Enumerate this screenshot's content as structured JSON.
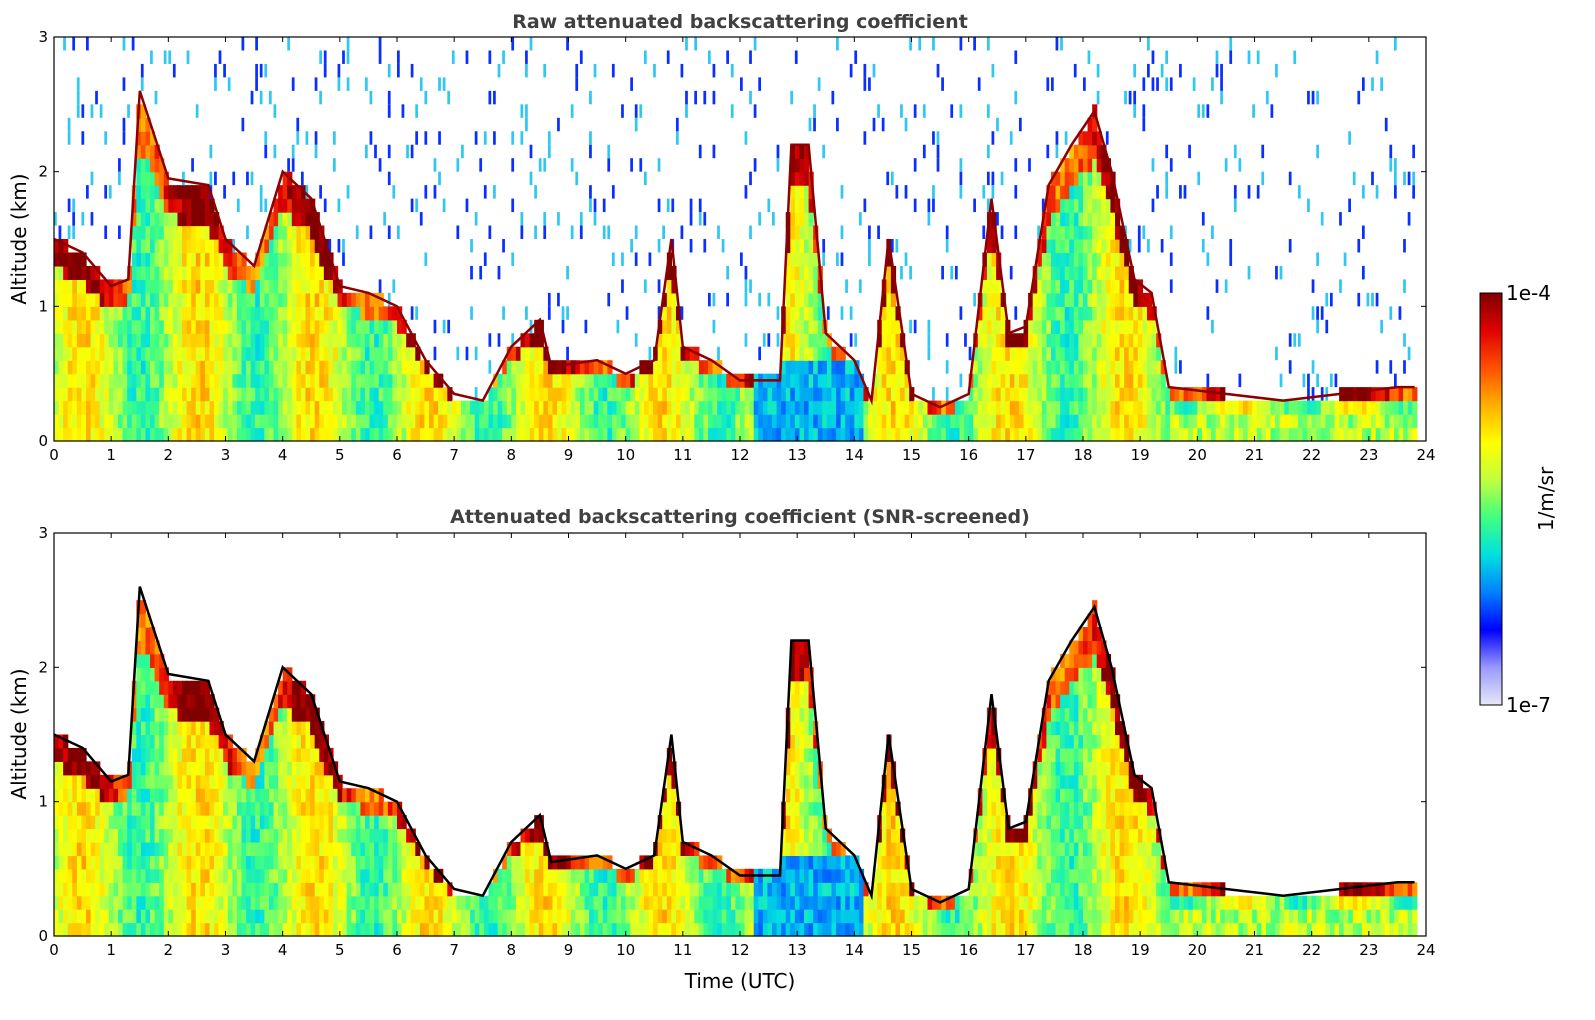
{
  "chart_data": [
    {
      "type": "heatmap",
      "title": "Raw attenuated backscattering coefficient",
      "xlabel": "",
      "ylabel": "Altitude (km)",
      "xlim": [
        0,
        24
      ],
      "ylim": [
        0,
        3
      ],
      "xticks": [
        "0",
        "1",
        "2",
        "3",
        "4",
        "5",
        "6",
        "7",
        "8",
        "9",
        "10",
        "11",
        "12",
        "13",
        "14",
        "15",
        "16",
        "17",
        "18",
        "19",
        "20",
        "21",
        "22",
        "23",
        "24"
      ],
      "yticks": [
        "0",
        "1",
        "2",
        "3"
      ],
      "noise_above_layer": true,
      "boundary_layer_top_km": [
        [
          0.0,
          1.5
        ],
        [
          0.5,
          1.4
        ],
        [
          1.0,
          1.15
        ],
        [
          1.3,
          1.2
        ],
        [
          1.5,
          2.6
        ],
        [
          2.0,
          1.95
        ],
        [
          2.7,
          1.9
        ],
        [
          3.0,
          1.5
        ],
        [
          3.5,
          1.3
        ],
        [
          4.0,
          2.0
        ],
        [
          4.5,
          1.8
        ],
        [
          5.0,
          1.15
        ],
        [
          5.5,
          1.1
        ],
        [
          6.0,
          1.0
        ],
        [
          6.5,
          0.6
        ],
        [
          7.0,
          0.35
        ],
        [
          7.5,
          0.3
        ],
        [
          8.0,
          0.7
        ],
        [
          8.5,
          0.9
        ],
        [
          8.7,
          0.55
        ],
        [
          9.5,
          0.6
        ],
        [
          10.0,
          0.5
        ],
        [
          10.5,
          0.6
        ],
        [
          10.8,
          1.5
        ],
        [
          11.0,
          0.7
        ],
        [
          11.5,
          0.6
        ],
        [
          12.0,
          0.45
        ],
        [
          12.7,
          0.45
        ],
        [
          12.9,
          2.2
        ],
        [
          13.2,
          2.2
        ],
        [
          13.5,
          0.8
        ],
        [
          14.0,
          0.6
        ],
        [
          14.3,
          0.3
        ],
        [
          14.6,
          1.5
        ],
        [
          15.0,
          0.35
        ],
        [
          15.5,
          0.25
        ],
        [
          16.0,
          0.35
        ],
        [
          16.4,
          1.8
        ],
        [
          16.7,
          0.8
        ],
        [
          17.0,
          0.85
        ],
        [
          17.4,
          1.9
        ],
        [
          17.8,
          2.2
        ],
        [
          18.2,
          2.45
        ],
        [
          18.5,
          2.0
        ],
        [
          18.9,
          1.2
        ],
        [
          19.2,
          1.1
        ],
        [
          19.5,
          0.4
        ],
        [
          20.5,
          0.35
        ],
        [
          21.5,
          0.3
        ],
        [
          22.5,
          0.35
        ],
        [
          23.5,
          0.4
        ],
        [
          23.8,
          0.4
        ]
      ]
    },
    {
      "type": "heatmap",
      "title": "Attenuated backscattering coefficient (SNR-screened)",
      "xlabel": "Time (UTC)",
      "ylabel": "Altitude (km)",
      "xlim": [
        0,
        24
      ],
      "ylim": [
        0,
        3
      ],
      "xticks": [
        "0",
        "1",
        "2",
        "3",
        "4",
        "5",
        "6",
        "7",
        "8",
        "9",
        "10",
        "11",
        "12",
        "13",
        "14",
        "15",
        "16",
        "17",
        "18",
        "19",
        "20",
        "21",
        "22",
        "23",
        "24"
      ],
      "yticks": [
        "0",
        "1",
        "2",
        "3"
      ],
      "noise_above_layer": false,
      "boundary_layer_top_km": [
        [
          0.0,
          1.5
        ],
        [
          0.5,
          1.4
        ],
        [
          1.0,
          1.15
        ],
        [
          1.3,
          1.2
        ],
        [
          1.5,
          2.6
        ],
        [
          2.0,
          1.95
        ],
        [
          2.7,
          1.9
        ],
        [
          3.0,
          1.5
        ],
        [
          3.5,
          1.3
        ],
        [
          4.0,
          2.0
        ],
        [
          4.5,
          1.8
        ],
        [
          5.0,
          1.15
        ],
        [
          5.5,
          1.1
        ],
        [
          6.0,
          1.0
        ],
        [
          6.5,
          0.6
        ],
        [
          7.0,
          0.35
        ],
        [
          7.5,
          0.3
        ],
        [
          8.0,
          0.7
        ],
        [
          8.5,
          0.9
        ],
        [
          8.7,
          0.55
        ],
        [
          9.5,
          0.6
        ],
        [
          10.0,
          0.5
        ],
        [
          10.5,
          0.6
        ],
        [
          10.8,
          1.5
        ],
        [
          11.0,
          0.7
        ],
        [
          11.5,
          0.6
        ],
        [
          12.0,
          0.45
        ],
        [
          12.7,
          0.45
        ],
        [
          12.9,
          2.2
        ],
        [
          13.2,
          2.2
        ],
        [
          13.5,
          0.8
        ],
        [
          14.0,
          0.6
        ],
        [
          14.3,
          0.3
        ],
        [
          14.6,
          1.5
        ],
        [
          15.0,
          0.35
        ],
        [
          15.5,
          0.25
        ],
        [
          16.0,
          0.35
        ],
        [
          16.4,
          1.8
        ],
        [
          16.7,
          0.8
        ],
        [
          17.0,
          0.85
        ],
        [
          17.4,
          1.9
        ],
        [
          17.8,
          2.2
        ],
        [
          18.2,
          2.45
        ],
        [
          18.5,
          2.0
        ],
        [
          18.9,
          1.2
        ],
        [
          19.2,
          1.1
        ],
        [
          19.5,
          0.4
        ],
        [
          20.5,
          0.35
        ],
        [
          21.5,
          0.3
        ],
        [
          22.5,
          0.35
        ],
        [
          23.5,
          0.4
        ],
        [
          23.8,
          0.4
        ]
      ]
    }
  ],
  "colorbar": {
    "max_label": "1e-4",
    "min_label": "1e-7",
    "unit_label": "1/m/sr",
    "colors": [
      "#e8e8f8",
      "#9999ff",
      "#0000ff",
      "#0080ff",
      "#00e0e0",
      "#40ff80",
      "#c0ff40",
      "#ffff00",
      "#ffb000",
      "#ff5000",
      "#e00000",
      "#800000"
    ]
  }
}
